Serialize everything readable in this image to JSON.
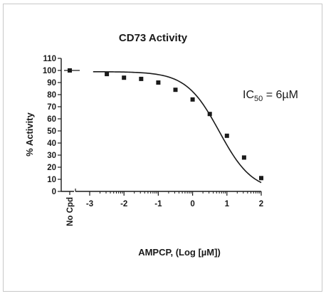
{
  "chart_data": {
    "type": "scatter",
    "title": "CD73 Activity",
    "xlabel": "AMPCP, (Log [µM])",
    "ylabel": "% Activity",
    "xlim": [
      -3,
      2
    ],
    "ylim": [
      0,
      110
    ],
    "x_ticks": [
      "-3",
      "-2",
      "-1",
      "0",
      "1",
      "2"
    ],
    "y_ticks": [
      "0",
      "10",
      "20",
      "30",
      "40",
      "50",
      "60",
      "70",
      "80",
      "90",
      "100",
      "110"
    ],
    "control_label": "No Cpd",
    "control_value": 100,
    "points": [
      {
        "x": -2.5,
        "y": 97
      },
      {
        "x": -2.0,
        "y": 94
      },
      {
        "x": -1.5,
        "y": 93
      },
      {
        "x": -1.0,
        "y": 90
      },
      {
        "x": -0.5,
        "y": 84
      },
      {
        "x": 0.0,
        "y": 76
      },
      {
        "x": 0.5,
        "y": 64
      },
      {
        "x": 1.0,
        "y": 46
      },
      {
        "x": 1.5,
        "y": 28
      },
      {
        "x": 2.0,
        "y": 11
      }
    ],
    "fit": {
      "top": 99,
      "bottom": 0,
      "log_ic50": 0.778,
      "hill": 0.9
    },
    "annotation": {
      "prefix": "IC",
      "subscript": "50",
      "suffix": " = 6µM"
    },
    "grid": false,
    "legend": "none"
  }
}
